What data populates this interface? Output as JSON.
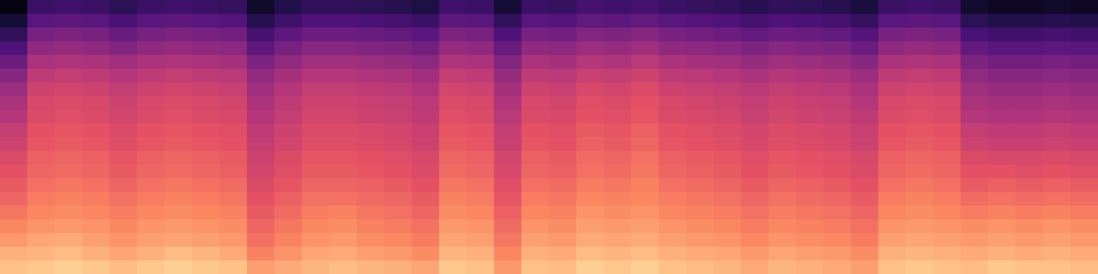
{
  "chart_data": {
    "type": "heatmap",
    "color": "magma",
    "tick_labels": false,
    "zlim": [
      -80,
      0
    ],
    "cells": [
      [
        -10,
        -9,
        -8,
        -9,
        -11,
        -9,
        -8,
        -9,
        -10,
        -16,
        -14,
        -12,
        -11,
        -12,
        -13,
        -15,
        -9,
        -10,
        -17,
        -10,
        -11,
        -8,
        -9,
        -8,
        -10,
        -11,
        -12,
        -14,
        -12,
        -13,
        -14,
        -16,
        -10,
        -9,
        -10,
        -11,
        -9,
        -10,
        -10,
        -11
      ],
      [
        -13,
        -12,
        -11,
        -13,
        -15,
        -13,
        -11,
        -12,
        -14,
        -21,
        -18,
        -15,
        -14,
        -16,
        -17,
        -19,
        -12,
        -13,
        -20,
        -13,
        -14,
        -11,
        -12,
        -11,
        -13,
        -14,
        -15,
        -17,
        -15,
        -16,
        -17,
        -19,
        -13,
        -12,
        -13,
        -14,
        -13,
        -14,
        -13,
        -14
      ],
      [
        -17,
        -15,
        -14,
        -16,
        -18,
        -16,
        -15,
        -16,
        -17,
        -24,
        -21,
        -18,
        -17,
        -19,
        -20,
        -22,
        -15,
        -16,
        -23,
        -16,
        -17,
        -14,
        -15,
        -14,
        -16,
        -17,
        -18,
        -20,
        -18,
        -19,
        -20,
        -22,
        -16,
        -15,
        -16,
        -17,
        -16,
        -17,
        -16,
        -17
      ],
      [
        -20,
        -18,
        -17,
        -18,
        -20,
        -18,
        -17,
        -18,
        -19,
        -26,
        -23,
        -20,
        -19,
        -21,
        -22,
        -24,
        -17,
        -18,
        -25,
        -18,
        -19,
        -16,
        -17,
        -16,
        -18,
        -19,
        -20,
        -22,
        -20,
        -21,
        -22,
        -24,
        -18,
        -17,
        -18,
        -19,
        -18,
        -19,
        -18,
        -19
      ],
      [
        -23,
        -20,
        -19,
        -20,
        -22,
        -20,
        -19,
        -20,
        -21,
        -28,
        -25,
        -22,
        -21,
        -23,
        -24,
        -26,
        -19,
        -20,
        -27,
        -20,
        -21,
        -18,
        -19,
        -18,
        -20,
        -21,
        -22,
        -24,
        -22,
        -23,
        -24,
        -26,
        -20,
        -19,
        -20,
        -22,
        -21,
        -22,
        -21,
        -22
      ],
      [
        -26,
        -22,
        -21,
        -22,
        -24,
        -22,
        -21,
        -22,
        -23,
        -30,
        -27,
        -24,
        -24,
        -25,
        -26,
        -28,
        -21,
        -22,
        -29,
        -22,
        -23,
        -20,
        -21,
        -20,
        -22,
        -23,
        -24,
        -26,
        -24,
        -25,
        -26,
        -28,
        -22,
        -21,
        -22,
        -25,
        -24,
        -25,
        -24,
        -25
      ],
      [
        -28,
        -24,
        -23,
        -24,
        -26,
        -24,
        -23,
        -24,
        -25,
        -32,
        -29,
        -26,
        -26,
        -27,
        -28,
        -30,
        -23,
        -24,
        -31,
        -24,
        -25,
        -22,
        -23,
        -21,
        -24,
        -25,
        -26,
        -28,
        -26,
        -27,
        -28,
        -30,
        -24,
        -23,
        -24,
        -28,
        -27,
        -28,
        -27,
        -28
      ],
      [
        -30,
        -26,
        -25,
        -26,
        -28,
        -26,
        -25,
        -26,
        -27,
        -34,
        -31,
        -28,
        -28,
        -29,
        -30,
        -32,
        -25,
        -26,
        -33,
        -26,
        -27,
        -24,
        -25,
        -23,
        -26,
        -27,
        -28,
        -30,
        -28,
        -29,
        -30,
        -32,
        -26,
        -25,
        -26,
        -30,
        -30,
        -31,
        -30,
        -31
      ],
      [
        -32,
        -27,
        -26,
        -27,
        -29,
        -27,
        -26,
        -27,
        -28,
        -35,
        -32,
        -29,
        -29,
        -30,
        -31,
        -33,
        -26,
        -27,
        -34,
        -27,
        -28,
        -25,
        -26,
        -24,
        -27,
        -28,
        -29,
        -31,
        -29,
        -30,
        -31,
        -33,
        -27,
        -26,
        -27,
        -32,
        -33,
        -33,
        -32,
        -33
      ],
      [
        -35,
        -29,
        -28,
        -29,
        -31,
        -29,
        -28,
        -29,
        -30,
        -37,
        -34,
        -31,
        -31,
        -32,
        -33,
        -35,
        -28,
        -29,
        -36,
        -29,
        -30,
        -27,
        -28,
        -26,
        -29,
        -30,
        -31,
        -33,
        -31,
        -32,
        -33,
        -35,
        -29,
        -28,
        -29,
        -35,
        -36,
        -36,
        -35,
        -36
      ],
      [
        -37,
        -30,
        -29,
        -30,
        -32,
        -30,
        -29,
        -30,
        -31,
        -38,
        -35,
        -32,
        -32,
        -33,
        -34,
        -36,
        -29,
        -30,
        -37,
        -30,
        -31,
        -28,
        -29,
        -27,
        -30,
        -31,
        -32,
        -34,
        -32,
        -33,
        -34,
        -36,
        -30,
        -29,
        -30,
        -37,
        -38,
        -38,
        -37,
        -38
      ],
      [
        -40,
        -32,
        -31,
        -32,
        -34,
        -32,
        -31,
        -32,
        -33,
        -40,
        -37,
        -34,
        -34,
        -35,
        -36,
        -38,
        -31,
        -32,
        -39,
        -32,
        -33,
        -30,
        -31,
        -29,
        -32,
        -33,
        -34,
        -36,
        -34,
        -35,
        -36,
        -38,
        -32,
        -31,
        -32,
        -40,
        -41,
        -41,
        -40,
        -41
      ],
      [
        -42,
        -33,
        -32,
        -33,
        -35,
        -33,
        -32,
        -33,
        -34,
        -42,
        -38,
        -35,
        -35,
        -36,
        -37,
        -39,
        -32,
        -33,
        -41,
        -33,
        -34,
        -31,
        -32,
        -30,
        -33,
        -34,
        -35,
        -37,
        -35,
        -36,
        -37,
        -40,
        -33,
        -32,
        -33,
        -42,
        -43,
        -43,
        -42,
        -43
      ],
      [
        -45,
        -35,
        -34,
        -35,
        -37,
        -35,
        -34,
        -35,
        -36,
        -44,
        -40,
        -37,
        -37,
        -38,
        -39,
        -41,
        -34,
        -35,
        -43,
        -35,
        -36,
        -33,
        -34,
        -32,
        -35,
        -36,
        -37,
        -39,
        -37,
        -38,
        -39,
        -42,
        -35,
        -34,
        -35,
        -44,
        -46,
        -46,
        -45,
        -46
      ],
      [
        -49,
        -38,
        -37,
        -38,
        -40,
        -38,
        -37,
        -38,
        -39,
        -47,
        -43,
        -40,
        -40,
        -41,
        -42,
        -44,
        -37,
        -38,
        -46,
        -38,
        -39,
        -36,
        -37,
        -35,
        -38,
        -39,
        -40,
        -42,
        -40,
        -41,
        -42,
        -45,
        -38,
        -37,
        -38,
        -47,
        -49,
        -49,
        -48,
        -49
      ],
      [
        -54,
        -42,
        -41,
        -42,
        -44,
        -42,
        -41,
        -42,
        -43,
        -51,
        -47,
        -44,
        -44,
        -45,
        -46,
        -48,
        -41,
        -42,
        -50,
        -42,
        -43,
        -40,
        -41,
        -39,
        -42,
        -43,
        -44,
        -46,
        -44,
        -45,
        -46,
        -49,
        -42,
        -41,
        -42,
        -51,
        -53,
        -53,
        -52,
        -53
      ],
      [
        -60,
        -47,
        -46,
        -47,
        -50,
        -47,
        -46,
        -47,
        -48,
        -57,
        -52,
        -49,
        -49,
        -50,
        -51,
        -53,
        -46,
        -47,
        -55,
        -47,
        -48,
        -45,
        -46,
        -44,
        -47,
        -48,
        -49,
        -51,
        -49,
        -50,
        -51,
        -54,
        -47,
        -46,
        -47,
        -56,
        -58,
        -58,
        -57,
        -58
      ],
      [
        -66,
        -52,
        -51,
        -52,
        -55,
        -52,
        -51,
        -52,
        -53,
        -62,
        -57,
        -54,
        -54,
        -55,
        -56,
        -58,
        -51,
        -52,
        -60,
        -52,
        -53,
        -50,
        -51,
        -49,
        -52,
        -53,
        -54,
        -56,
        -54,
        -55,
        -56,
        -59,
        -52,
        -51,
        -52,
        -61,
        -63,
        -63,
        -62,
        -63
      ],
      [
        -72,
        -58,
        -57,
        -58,
        -61,
        -58,
        -57,
        -58,
        -59,
        -68,
        -63,
        -60,
        -60,
        -61,
        -62,
        -64,
        -57,
        -58,
        -66,
        -58,
        -59,
        -56,
        -57,
        -56,
        -58,
        -59,
        -60,
        -62,
        -60,
        -61,
        -62,
        -65,
        -58,
        -57,
        -58,
        -67,
        -69,
        -69,
        -68,
        -69
      ],
      [
        -78,
        -64,
        -63,
        -64,
        -67,
        -64,
        -63,
        -64,
        -65,
        -74,
        -69,
        -66,
        -66,
        -67,
        -68,
        -70,
        -63,
        -64,
        -72,
        -64,
        -65,
        -62,
        -63,
        -62,
        -64,
        -65,
        -66,
        -68,
        -66,
        -67,
        -68,
        -71,
        -64,
        -63,
        -64,
        -73,
        -75,
        -75,
        -74,
        -75
      ]
    ]
  }
}
